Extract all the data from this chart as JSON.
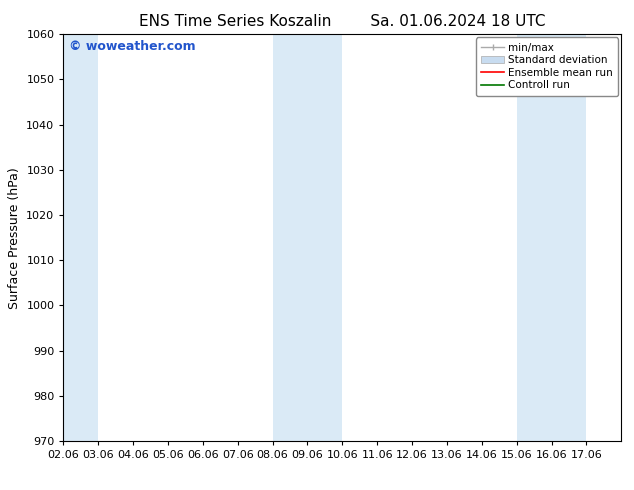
{
  "title_left": "ENS Time Series Koszalin",
  "title_right": "Sa. 01.06.2024 18 UTC",
  "ylabel": "Surface Pressure (hPa)",
  "ylim": [
    970,
    1060
  ],
  "yticks": [
    970,
    980,
    990,
    1000,
    1010,
    1020,
    1030,
    1040,
    1050,
    1060
  ],
  "xlim": [
    0,
    16
  ],
  "xtick_labels": [
    "02.06",
    "03.06",
    "04.06",
    "05.06",
    "06.06",
    "07.06",
    "08.06",
    "09.06",
    "10.06",
    "11.06",
    "12.06",
    "13.06",
    "14.06",
    "15.06",
    "16.06",
    "17.06"
  ],
  "bg_color": "#ffffff",
  "plot_bg_color": "#ffffff",
  "shaded_bands": [
    {
      "x_start": 0,
      "x_end": 1,
      "color": "#daeaf6"
    },
    {
      "x_start": 6,
      "x_end": 8,
      "color": "#daeaf6"
    },
    {
      "x_start": 13,
      "x_end": 15,
      "color": "#daeaf6"
    }
  ],
  "watermark_text": "© woweather.com",
  "watermark_color": "#2255cc",
  "legend_minmax_color": "#aaaaaa",
  "legend_std_color": "#c8dcf0",
  "legend_ens_color": "#ff0000",
  "legend_ctrl_color": "#007700",
  "title_fontsize": 11,
  "axis_label_fontsize": 9,
  "tick_fontsize": 8,
  "watermark_fontsize": 9,
  "legend_fontsize": 7.5,
  "spine_color": "#000000"
}
